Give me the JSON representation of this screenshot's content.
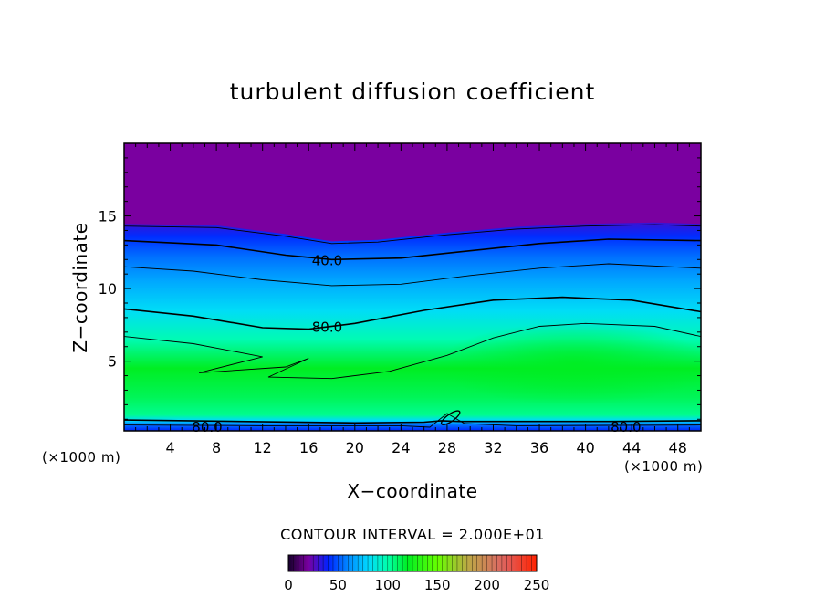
{
  "chart_data": {
    "type": "heatmap",
    "title": "turbulent diffusion coefficient",
    "xlabel": "X−coordinate",
    "ylabel": "Z−coordinate",
    "x_unit": "(×1000 m)",
    "xlim": [
      0,
      50
    ],
    "ylim": [
      0.2,
      20
    ],
    "x_ticks": [
      4,
      8,
      12,
      16,
      20,
      24,
      28,
      32,
      36,
      40,
      44,
      48
    ],
    "y_ticks": [
      5,
      10,
      15
    ],
    "contour_interval_label": "CONTOUR INTERVAL = 2.000E+01",
    "colorbar": {
      "min": 0,
      "max": 250,
      "ticks": [
        0,
        50,
        100,
        150,
        200,
        250
      ]
    },
    "contour_labels": [
      {
        "text": "40.0",
        "x": 17.6,
        "z": 12.0
      },
      {
        "text": "80.0",
        "x": 17.6,
        "z": 7.4
      },
      {
        "text": "80.0",
        "x": 7.2,
        "z": 0.5
      },
      {
        "text": "80.0",
        "x": 43.5,
        "z": 0.5
      }
    ],
    "contours": [
      {
        "level": 20,
        "points": [
          [
            0,
            14.3
          ],
          [
            8,
            14.2
          ],
          [
            14,
            13.6
          ],
          [
            18,
            13.1
          ],
          [
            22,
            13.2
          ],
          [
            28,
            13.7
          ],
          [
            34,
            14.1
          ],
          [
            40,
            14.3
          ],
          [
            46,
            14.4
          ],
          [
            50,
            14.3
          ]
        ]
      },
      {
        "level": 40,
        "points": [
          [
            0,
            13.3
          ],
          [
            8,
            13.0
          ],
          [
            14,
            12.3
          ],
          [
            18,
            12.0
          ],
          [
            24,
            12.1
          ],
          [
            30,
            12.6
          ],
          [
            36,
            13.1
          ],
          [
            42,
            13.4
          ],
          [
            50,
            13.3
          ]
        ]
      },
      {
        "level": 60,
        "points": [
          [
            0,
            11.5
          ],
          [
            6,
            11.2
          ],
          [
            12,
            10.6
          ],
          [
            18,
            10.2
          ],
          [
            24,
            10.3
          ],
          [
            30,
            10.9
          ],
          [
            36,
            11.4
          ],
          [
            42,
            11.7
          ],
          [
            50,
            11.4
          ]
        ]
      },
      {
        "level": 80,
        "points": [
          [
            0,
            8.6
          ],
          [
            6,
            8.1
          ],
          [
            12,
            7.3
          ],
          [
            16,
            7.2
          ],
          [
            20,
            7.6
          ],
          [
            26,
            8.5
          ],
          [
            32,
            9.2
          ],
          [
            38,
            9.4
          ],
          [
            44,
            9.2
          ],
          [
            50,
            8.4
          ]
        ]
      },
      {
        "level": 100,
        "points": [
          [
            0,
            6.7
          ],
          [
            6,
            6.2
          ],
          [
            10,
            5.6
          ],
          [
            12,
            5.3
          ],
          [
            6.5,
            4.2
          ],
          [
            14,
            4.6
          ],
          [
            16,
            5.2
          ],
          [
            12.5,
            3.9
          ],
          [
            18,
            3.8
          ],
          [
            23,
            4.3
          ],
          [
            28,
            5.4
          ],
          [
            32,
            6.6
          ],
          [
            36,
            7.4
          ],
          [
            40,
            7.6
          ],
          [
            46,
            7.4
          ],
          [
            50,
            6.7
          ]
        ]
      },
      {
        "level": 80,
        "points": [
          [
            0,
            0.95
          ],
          [
            10,
            0.85
          ],
          [
            20,
            0.75
          ],
          [
            26,
            0.8
          ],
          [
            27.5,
            0.9
          ],
          [
            29,
            0.85
          ],
          [
            33,
            0.85
          ],
          [
            42,
            0.85
          ],
          [
            50,
            0.9
          ]
        ]
      },
      {
        "level": 60,
        "points": [
          [
            0,
            0.6
          ],
          [
            12,
            0.55
          ],
          [
            24,
            0.55
          ],
          [
            26.5,
            0.45
          ],
          [
            28,
            1.4
          ],
          [
            29.5,
            0.7
          ],
          [
            34,
            0.55
          ],
          [
            50,
            0.6
          ]
        ]
      }
    ]
  }
}
